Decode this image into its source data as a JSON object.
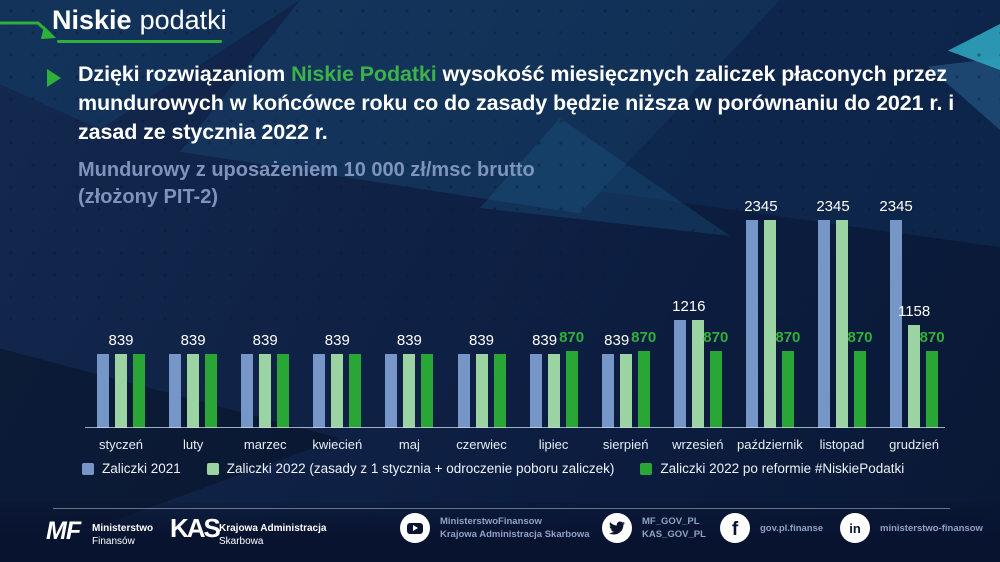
{
  "brand": {
    "bold": "Niskie",
    "light": "podatki",
    "accent_green": "#2db139"
  },
  "heading": {
    "pre": "Dzięki rozwiązaniom ",
    "highlight": "Niskie Podatki",
    "post": " wysokość miesięcznych zaliczek płaconych przez mundurowych w końcówce roku co do zasady będzie niższa w porównaniu do 2021 r. i zasad ze stycznia 2022 r.",
    "highlight_color": "#3cb24a"
  },
  "subtitle": {
    "line1": "Mundurowy z uposażeniem 10 000 zł/msc brutto",
    "line2": "(złożony PIT-2)",
    "color": "#7e94bd"
  },
  "chart_data": {
    "type": "bar",
    "title": "",
    "xlabel": "",
    "ylabel": "",
    "ylim": [
      0,
      2500
    ],
    "grid": false,
    "legend_position": "bottom",
    "categories": [
      "styczeń",
      "luty",
      "marzec",
      "kwiecień",
      "maj",
      "czerwiec",
      "lipiec",
      "sierpień",
      "wrzesień",
      "październik",
      "listopad",
      "grudzień"
    ],
    "series": [
      {
        "name": "Zaliczki 2021",
        "color": "#7796c8",
        "values": [
          839,
          839,
          839,
          839,
          839,
          839,
          839,
          839,
          1216,
          2345,
          2345,
          2345
        ]
      },
      {
        "name": "Zaliczki 2022 (zasady z 1 stycznia + odroczenie poboru zaliczek)",
        "color": "#9cd3a3",
        "values": [
          839,
          839,
          839,
          839,
          839,
          839,
          839,
          839,
          1216,
          2345,
          2345,
          1158
        ]
      },
      {
        "name": "Zaliczki 2022 po reformie #NiskiePodatki",
        "color": "#2aa637",
        "values": [
          839,
          839,
          839,
          839,
          839,
          839,
          870,
          870,
          870,
          870,
          870,
          870
        ]
      }
    ],
    "value_labels": [
      [
        {
          "t": "839",
          "c": "white",
          "a": "group"
        }
      ],
      [
        {
          "t": "839",
          "c": "white",
          "a": "group"
        }
      ],
      [
        {
          "t": "839",
          "c": "white",
          "a": "group"
        }
      ],
      [
        {
          "t": "839",
          "c": "white",
          "a": "group"
        }
      ],
      [
        {
          "t": "839",
          "c": "white",
          "a": "group"
        }
      ],
      [
        {
          "t": "839",
          "c": "white",
          "a": "group"
        }
      ],
      [
        {
          "t": "839",
          "c": "white",
          "a": "pair"
        },
        {
          "t": "870",
          "c": "green",
          "a": "bar3"
        }
      ],
      [
        {
          "t": "839",
          "c": "white",
          "a": "pair"
        },
        {
          "t": "870",
          "c": "green",
          "a": "bar3"
        }
      ],
      [
        {
          "t": "1216",
          "c": "white",
          "a": "pair"
        },
        {
          "t": "870",
          "c": "green",
          "a": "bar3"
        }
      ],
      [
        {
          "t": "2345",
          "c": "white",
          "a": "pair"
        },
        {
          "t": "870",
          "c": "green",
          "a": "bar3"
        }
      ],
      [
        {
          "t": "2345",
          "c": "white",
          "a": "pair"
        },
        {
          "t": "870",
          "c": "green",
          "a": "bar3"
        }
      ],
      [
        {
          "t": "2345",
          "c": "white",
          "a": "bar1"
        },
        {
          "t": "1158",
          "c": "white",
          "a": "bar2"
        },
        {
          "t": "870",
          "c": "green",
          "a": "bar3"
        }
      ]
    ],
    "green_label_color": "#2fb23a"
  },
  "footer": {
    "mf": {
      "logo": "MF",
      "line1": "Ministerstwo",
      "line2": "Finansów"
    },
    "kas": {
      "logo": "KAS",
      "line1": "Krajowa Administracja",
      "line2": "Skarbowa"
    },
    "social": [
      {
        "icon": "youtube",
        "lines": [
          "MinisterstwoFinansow",
          "Krajowa Administracja Skarbowa"
        ]
      },
      {
        "icon": "twitter",
        "lines": [
          "MF_GOV_PL",
          "KAS_GOV_PL"
        ]
      },
      {
        "icon": "facebook",
        "lines": [
          "gov.pl.finanse"
        ]
      },
      {
        "icon": "linkedin",
        "lines": [
          "ministerstwo-finansow"
        ]
      }
    ],
    "icon_glyphs": {
      "facebook": "f",
      "linkedin": "in"
    }
  }
}
